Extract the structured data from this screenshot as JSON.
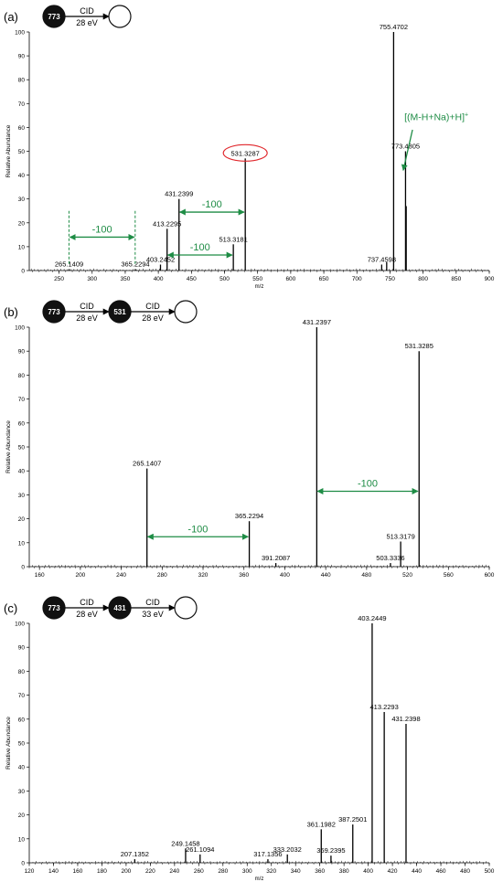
{
  "panels": [
    {
      "label": "(a)",
      "scheme": {
        "nodes": [
          "773",
          ""
        ],
        "steps": [
          {
            "top": "CID",
            "bottom": "28 eV"
          }
        ]
      }
    },
    {
      "label": "(b)",
      "scheme": {
        "nodes": [
          "773",
          "531",
          ""
        ],
        "steps": [
          {
            "top": "CID",
            "bottom": "28 eV"
          },
          {
            "top": "CID",
            "bottom": "28 eV"
          }
        ]
      }
    },
    {
      "label": "(c)",
      "scheme": {
        "nodes": [
          "773",
          "431",
          ""
        ],
        "steps": [
          {
            "top": "CID",
            "bottom": "28 eV"
          },
          {
            "top": "CID",
            "bottom": "33 eV"
          }
        ]
      }
    }
  ],
  "colors": {
    "annotation": "#1e8c45",
    "highlight_circle": "#e0262b",
    "axis": "#000000"
  },
  "chart_data": [
    {
      "type": "bar",
      "ylabel": "Relative Abundance",
      "xlabel": "m/z",
      "xlim": [
        205,
        900
      ],
      "ylim": [
        0,
        100
      ],
      "xticks": [
        250,
        300,
        350,
        400,
        450,
        500,
        550,
        600,
        650,
        700,
        750,
        800,
        850,
        900
      ],
      "yticks": [
        0,
        10,
        20,
        30,
        40,
        50,
        60,
        70,
        80,
        90,
        100
      ],
      "peaks": [
        {
          "x": 265.1409,
          "y": 0.6,
          "label": "265.1409"
        },
        {
          "x": 365.2294,
          "y": 0.6,
          "label": "365.2294"
        },
        {
          "x": 403.2452,
          "y": 2.5,
          "label": "403.2452"
        },
        {
          "x": 413.2295,
          "y": 17.5,
          "label": "413.2295"
        },
        {
          "x": 431.2399,
          "y": 30,
          "label": "431.2399"
        },
        {
          "x": 513.3181,
          "y": 11,
          "label": "513.3181"
        },
        {
          "x": 531.3287,
          "y": 47,
          "label": "531.3287"
        },
        {
          "x": 737.4598,
          "y": 2.5,
          "label": "737.4598"
        },
        {
          "x": 745,
          "y": 3.5,
          "label": ""
        },
        {
          "x": 755.4702,
          "y": 100,
          "label": "755.4702"
        },
        {
          "x": 773.4805,
          "y": 50,
          "label": "773.4805"
        },
        {
          "x": 774.48,
          "y": 27,
          "label": ""
        }
      ],
      "annotations": {
        "ion_label": "[(M-H+Na)+H]",
        "ion_label_sup": "+",
        "diff_label": "-100",
        "diff_arrows": [
          {
            "from": 265,
            "to": 365,
            "y": 14,
            "label": "-100"
          },
          {
            "from": 431,
            "to": 531,
            "y": 24.5,
            "label": "-100"
          },
          {
            "from": 413,
            "to": 513,
            "y": 6.5,
            "label": "-100"
          }
        ],
        "highlighted_peak": "531.3287"
      }
    },
    {
      "type": "bar",
      "ylabel": "Relative Abundance",
      "xlabel": "",
      "xlim": [
        150,
        600
      ],
      "ylim": [
        0,
        100
      ],
      "xticks": [
        160,
        200,
        240,
        280,
        320,
        360,
        400,
        440,
        480,
        520,
        560,
        600
      ],
      "yticks": [
        0,
        10,
        20,
        30,
        40,
        50,
        60,
        70,
        80,
        90,
        100
      ],
      "peaks": [
        {
          "x": 265.1407,
          "y": 41,
          "label": "265.1407"
        },
        {
          "x": 365.2294,
          "y": 19,
          "label": "365.2294"
        },
        {
          "x": 391.2087,
          "y": 1.5,
          "label": "391.2087"
        },
        {
          "x": 431.2397,
          "y": 100,
          "label": "431.2397"
        },
        {
          "x": 503.3336,
          "y": 1.5,
          "label": "503.3336"
        },
        {
          "x": 513.3179,
          "y": 10.5,
          "label": "513.3179"
        },
        {
          "x": 531.3285,
          "y": 90,
          "label": "531.3285"
        }
      ],
      "annotations": {
        "diff_arrows": [
          {
            "from": 265,
            "to": 365,
            "y": 12.5,
            "label": "-100"
          },
          {
            "from": 431,
            "to": 531,
            "y": 31.5,
            "label": "-100"
          }
        ]
      }
    },
    {
      "type": "bar",
      "ylabel": "Relative Abundance",
      "xlabel": "m/z",
      "xlim": [
        120,
        500
      ],
      "ylim": [
        0,
        100
      ],
      "xticks": [
        120,
        140,
        160,
        180,
        200,
        220,
        240,
        260,
        280,
        300,
        320,
        340,
        360,
        380,
        400,
        420,
        440,
        460,
        480,
        500
      ],
      "yticks": [
        0,
        10,
        20,
        30,
        40,
        50,
        60,
        70,
        80,
        90,
        100
      ],
      "peaks": [
        {
          "x": 207.1352,
          "y": 1.5,
          "label": "207.1352"
        },
        {
          "x": 249.1458,
          "y": 6,
          "label": "249.1458"
        },
        {
          "x": 261.1094,
          "y": 3.5,
          "label": "261.1094"
        },
        {
          "x": 317.1356,
          "y": 1.5,
          "label": "317.1356"
        },
        {
          "x": 333.2032,
          "y": 3.5,
          "label": "333.2032"
        },
        {
          "x": 361.1982,
          "y": 14,
          "label": "361.1982"
        },
        {
          "x": 369.2395,
          "y": 3,
          "label": "369.2395"
        },
        {
          "x": 387.2501,
          "y": 16,
          "label": "387.2501"
        },
        {
          "x": 403.2449,
          "y": 100,
          "label": "403.2449"
        },
        {
          "x": 413.2293,
          "y": 63,
          "label": "413.2293"
        },
        {
          "x": 431.2398,
          "y": 58,
          "label": "431.2398"
        }
      ]
    }
  ]
}
